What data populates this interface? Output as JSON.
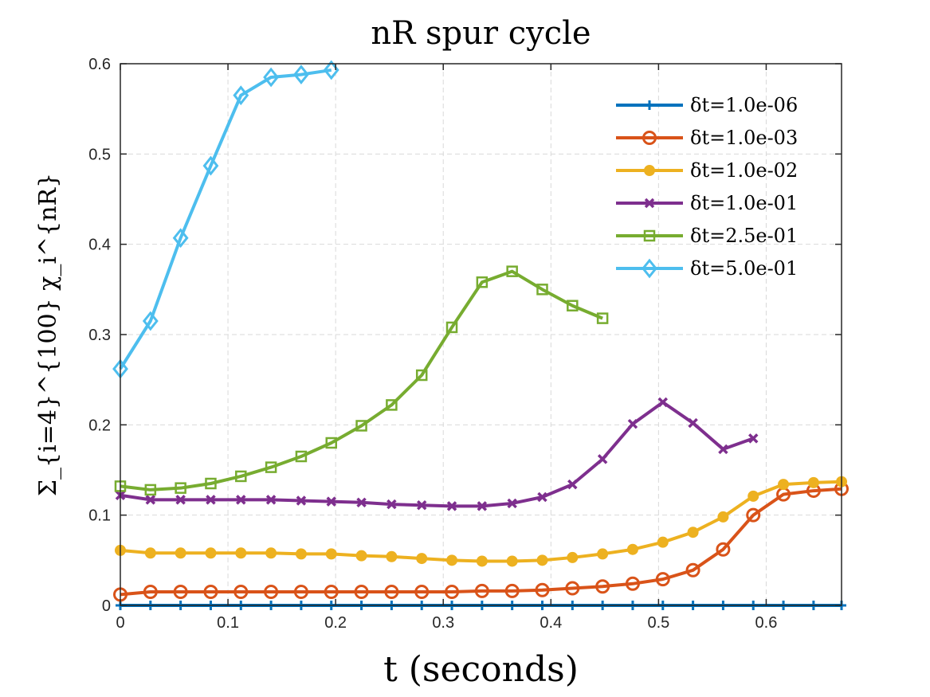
{
  "chart_data": {
    "type": "line",
    "title": "nR spur cycle",
    "xlabel": "t (seconds)",
    "ylabel": "Σ_{i=4}^{100} χ_i^{nR}",
    "xlim": [
      0,
      0.67
    ],
    "ylim": [
      0,
      0.6
    ],
    "x_ticks": [
      "0",
      "0.1",
      "0.2",
      "0.3",
      "0.4",
      "0.5",
      "0.6"
    ],
    "y_ticks": [
      "0",
      "0.1",
      "0.2",
      "0.3",
      "0.4",
      "0.5",
      "0.6"
    ],
    "grid": true,
    "legend_position": "top-right",
    "series": [
      {
        "name": "δt=1.0e-06",
        "color": "#0072bd",
        "marker": "plus",
        "x": [
          0,
          0.028,
          0.056,
          0.084,
          0.112,
          0.14,
          0.168,
          0.196,
          0.224,
          0.252,
          0.28,
          0.308,
          0.336,
          0.364,
          0.392,
          0.42,
          0.448,
          0.476,
          0.504,
          0.532,
          0.56,
          0.588,
          0.616,
          0.644,
          0.67
        ],
        "values": [
          0,
          0,
          0,
          0,
          0,
          0,
          0,
          0,
          0,
          0,
          0,
          0,
          0,
          0,
          0,
          0,
          0,
          0,
          0,
          0,
          0,
          0,
          0,
          0,
          0
        ]
      },
      {
        "name": "δt=1.0e-03",
        "color": "#d95319",
        "marker": "circle",
        "x": [
          0,
          0.028,
          0.056,
          0.084,
          0.112,
          0.14,
          0.168,
          0.196,
          0.224,
          0.252,
          0.28,
          0.308,
          0.336,
          0.364,
          0.392,
          0.42,
          0.448,
          0.476,
          0.504,
          0.532,
          0.56,
          0.588,
          0.616,
          0.644,
          0.67
        ],
        "values": [
          0.012,
          0.015,
          0.015,
          0.015,
          0.015,
          0.015,
          0.015,
          0.015,
          0.015,
          0.015,
          0.015,
          0.015,
          0.016,
          0.016,
          0.017,
          0.019,
          0.021,
          0.024,
          0.029,
          0.039,
          0.062,
          0.1,
          0.123,
          0.127,
          0.129
        ]
      },
      {
        "name": "δt=1.0e-02",
        "color": "#edb120",
        "marker": "dot",
        "x": [
          0,
          0.028,
          0.056,
          0.084,
          0.112,
          0.14,
          0.168,
          0.196,
          0.224,
          0.252,
          0.28,
          0.308,
          0.336,
          0.364,
          0.392,
          0.42,
          0.448,
          0.476,
          0.504,
          0.532,
          0.56,
          0.588,
          0.616,
          0.644,
          0.67
        ],
        "values": [
          0.061,
          0.058,
          0.058,
          0.058,
          0.058,
          0.058,
          0.057,
          0.057,
          0.055,
          0.054,
          0.052,
          0.05,
          0.049,
          0.049,
          0.05,
          0.053,
          0.057,
          0.062,
          0.07,
          0.081,
          0.098,
          0.121,
          0.134,
          0.136,
          0.137
        ]
      },
      {
        "name": "δt=1.0e-01",
        "color": "#7e2f8e",
        "marker": "x",
        "x": [
          0,
          0.028,
          0.056,
          0.084,
          0.112,
          0.14,
          0.168,
          0.196,
          0.224,
          0.252,
          0.28,
          0.308,
          0.336,
          0.364,
          0.392,
          0.42,
          0.448,
          0.476,
          0.504,
          0.532,
          0.56,
          0.588
        ],
        "values": [
          0.122,
          0.117,
          0.117,
          0.117,
          0.117,
          0.117,
          0.116,
          0.115,
          0.114,
          0.112,
          0.111,
          0.11,
          0.11,
          0.113,
          0.12,
          0.134,
          0.162,
          0.201,
          0.225,
          0.202,
          0.173,
          0.185
        ]
      },
      {
        "name": "δt=2.5e-01",
        "color": "#77ac30",
        "marker": "square",
        "x": [
          0,
          0.028,
          0.056,
          0.084,
          0.112,
          0.14,
          0.168,
          0.196,
          0.224,
          0.252,
          0.28,
          0.308,
          0.336,
          0.364,
          0.392,
          0.42,
          0.448
        ],
        "values": [
          0.132,
          0.128,
          0.13,
          0.135,
          0.143,
          0.153,
          0.165,
          0.18,
          0.199,
          0.222,
          0.255,
          0.308,
          0.358,
          0.37,
          0.35,
          0.332,
          0.318
        ]
      },
      {
        "name": "δt=5.0e-01",
        "color": "#4dbeee",
        "marker": "diamond",
        "x": [
          0,
          0.028,
          0.056,
          0.084,
          0.112,
          0.14,
          0.168,
          0.196
        ],
        "values": [
          0.262,
          0.315,
          0.407,
          0.487,
          0.565,
          0.585,
          0.588,
          0.593
        ]
      }
    ]
  }
}
